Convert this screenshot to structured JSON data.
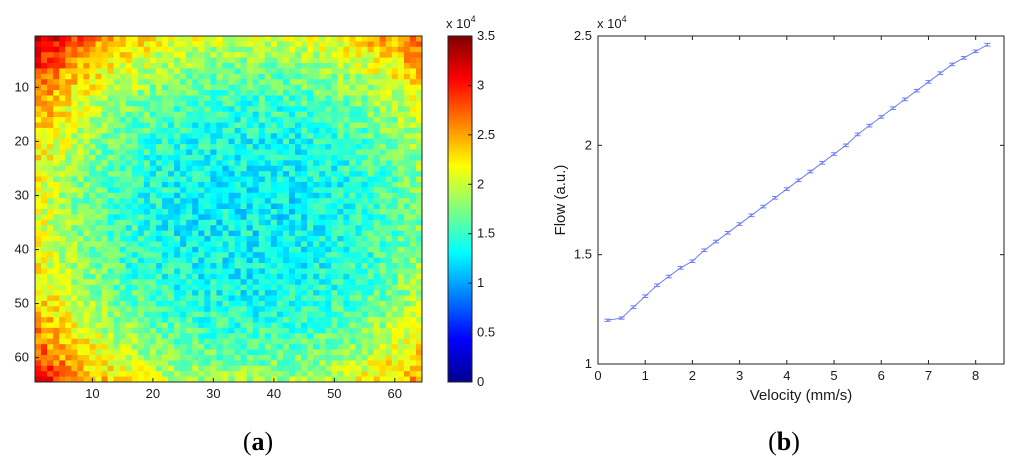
{
  "chart_data": [
    {
      "type": "heatmap",
      "panel": "a",
      "rows": 64,
      "cols": 64,
      "x_ticks": [
        10,
        20,
        30,
        40,
        50,
        60
      ],
      "y_ticks": [
        10,
        20,
        30,
        40,
        50,
        60
      ],
      "colorbar": {
        "ticks": [
          "0",
          "0.5",
          "1",
          "1.5",
          "2",
          "2.5",
          "3",
          "3.5"
        ],
        "range": [
          0,
          3.5
        ],
        "multiplier_base": "x 10",
        "multiplier_exp": "4",
        "colormap": "jet"
      },
      "value_model": {
        "center": [
          36,
          34
        ],
        "min_value": 1.3,
        "corner_value": 3.2,
        "noise": 0.28
      }
    },
    {
      "type": "line",
      "panel": "b",
      "xlabel": "Velocity (mm/s)",
      "ylabel": "Flow (a.u.)",
      "xlim": [
        0,
        8.6
      ],
      "ylim": [
        1,
        2.5
      ],
      "x_ticks": [
        "0",
        "1",
        "2",
        "3",
        "4",
        "5",
        "6",
        "7",
        "8"
      ],
      "y_ticks": [
        "1",
        "1.5",
        "2",
        "2.5"
      ],
      "y_multiplier_base": "x 10",
      "y_multiplier_exp": "4",
      "line_color": "#6f7ff2",
      "series": [
        {
          "x": [
            0.2,
            0.5,
            0.75,
            1.0,
            1.25,
            1.5,
            1.75,
            2.0,
            2.25,
            2.5,
            2.75,
            3.0,
            3.25,
            3.5,
            3.75,
            4.0,
            4.25,
            4.5,
            4.75,
            5.0,
            5.25,
            5.5,
            5.75,
            6.0,
            6.25,
            6.5,
            6.75,
            7.0,
            7.25,
            7.5,
            7.75,
            8.0,
            8.25
          ],
          "y": [
            1.2,
            1.21,
            1.26,
            1.31,
            1.36,
            1.4,
            1.44,
            1.47,
            1.52,
            1.56,
            1.6,
            1.64,
            1.68,
            1.72,
            1.76,
            1.8,
            1.84,
            1.88,
            1.92,
            1.96,
            2.0,
            2.05,
            2.09,
            2.13,
            2.17,
            2.21,
            2.25,
            2.29,
            2.33,
            2.37,
            2.4,
            2.43,
            2.46
          ],
          "error": [
            0.005,
            0.005,
            0.006,
            0.006,
            0.006,
            0.006,
            0.006,
            0.006,
            0.006,
            0.006,
            0.006,
            0.006,
            0.006,
            0.006,
            0.006,
            0.006,
            0.006,
            0.006,
            0.006,
            0.006,
            0.006,
            0.006,
            0.006,
            0.006,
            0.006,
            0.006,
            0.006,
            0.006,
            0.006,
            0.006,
            0.006,
            0.006,
            0.006
          ]
        }
      ]
    }
  ],
  "panel_labels": {
    "a_open": "(",
    "a_letter": "a",
    "a_close": ")",
    "b_open": "(",
    "b_letter": "b",
    "b_close": ")"
  }
}
